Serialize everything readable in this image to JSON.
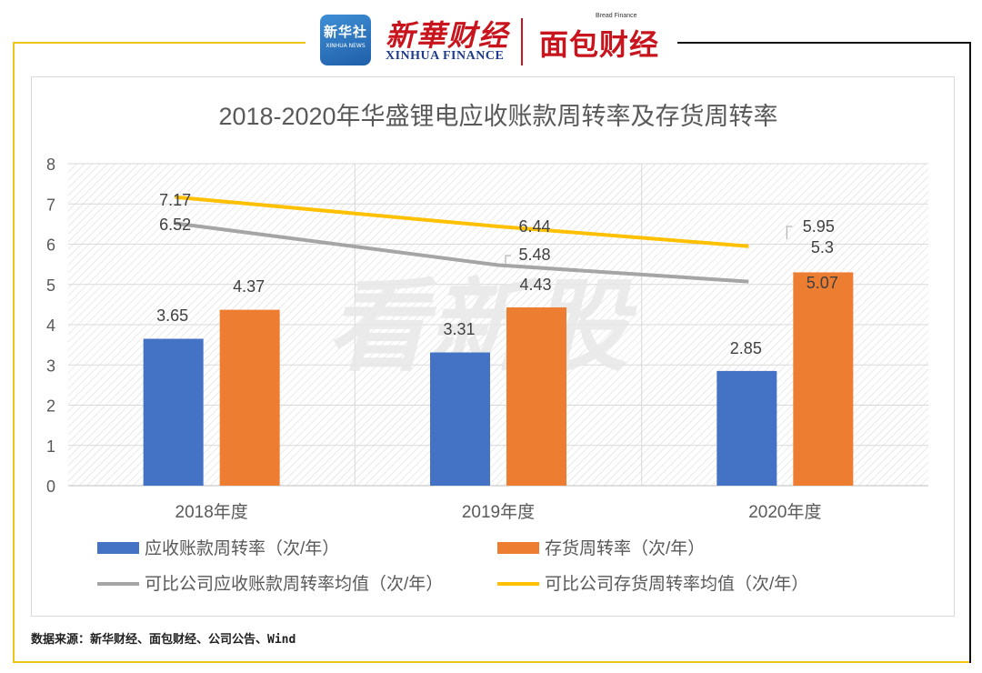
{
  "header": {
    "xinhua_badge_cn": "新华社",
    "xinhua_badge_en": "XINHUA NEWS",
    "xinhua_finance_cn": "新華财经",
    "xinhua_finance_en": "XINHUA FINANCE",
    "bread_finance_en": "Bread Finance",
    "bread_finance_cn": "面包财经"
  },
  "watermark": "看新股",
  "chart_data": {
    "type": "bar+line",
    "title": "2018-2020年华盛锂电应收账款周转率及存货周转率",
    "categories": [
      "2018年度",
      "2019年度",
      "2020年度"
    ],
    "ylim": [
      0,
      8
    ],
    "yticks": [
      "0",
      "1",
      "2",
      "3",
      "4",
      "5",
      "6",
      "7",
      "8"
    ],
    "series": [
      {
        "name": "应收账款周转率（次/年）",
        "kind": "bar",
        "color": "#4472c4",
        "values": [
          3.65,
          3.31,
          2.85
        ],
        "labels": [
          "3.65",
          "3.31",
          "2.85"
        ]
      },
      {
        "name": "存货周转率（次/年）",
        "kind": "bar",
        "color": "#ed7d31",
        "values": [
          4.37,
          4.43,
          5.3
        ],
        "labels": [
          "4.37",
          "4.43",
          "5.3"
        ]
      },
      {
        "name": "可比公司应收账款周转率均值（次/年）",
        "kind": "line",
        "color": "#a5a5a5",
        "values": [
          6.52,
          5.48,
          5.07
        ],
        "labels": [
          "6.52",
          "5.48",
          "5.07"
        ]
      },
      {
        "name": "可比公司存货周转率均值（次/年）",
        "kind": "line",
        "color": "#ffc000",
        "values": [
          7.17,
          6.44,
          5.95
        ],
        "labels": [
          "7.17",
          "6.44",
          "5.95"
        ]
      }
    ],
    "legend_position": "bottom",
    "grid": true
  },
  "footer": {
    "source": "数据来源：新华财经、面包财经、公司公告、Wind"
  }
}
